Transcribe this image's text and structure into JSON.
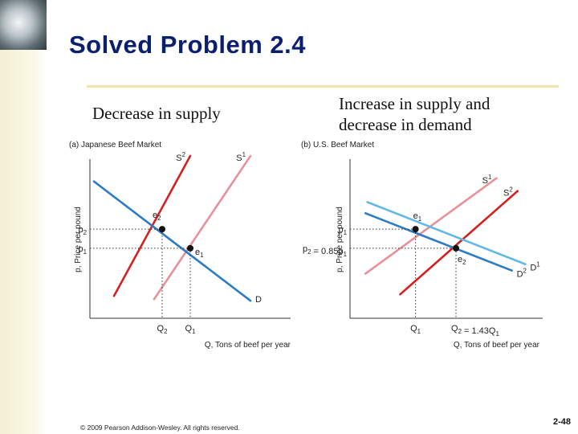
{
  "slide": {
    "title": "Solved Problem 2.4",
    "caption_left": "Decrease in supply",
    "caption_right": "Increase in supply and decrease in demand",
    "footer": "© 2009 Pearson Addison-Wesley. All rights reserved.",
    "page_number": "2-48"
  },
  "colors": {
    "title": "#0a1f6e",
    "supply_original": "#e8909a",
    "supply_new": "#d42020",
    "demand_original": "#5fb8e6",
    "demand_new": "#2b7cc4",
    "equilibrium": "#111111"
  },
  "chart_data": [
    {
      "type": "line",
      "panel_label": "(a) Japanese Beef Market",
      "xlabel": "Q, Tons of beef per year",
      "ylabel": "p, Price per pound",
      "xlim": [
        0,
        10
      ],
      "ylim": [
        0,
        10
      ],
      "x_ticks": [
        {
          "label": "Q2",
          "base": "Q",
          "sub": "2",
          "value": 3.6
        },
        {
          "label": "Q1",
          "base": "Q",
          "sub": "1",
          "value": 5.0
        }
      ],
      "y_ticks": [
        {
          "label": "p2",
          "base": "p",
          "sub": "2",
          "value": 5.6
        },
        {
          "label": "p1",
          "base": "p",
          "sub": "1",
          "value": 4.4
        }
      ],
      "series": [
        {
          "name": "S1",
          "base": "S",
          "sup": "1",
          "role": "supply_original",
          "points": [
            [
              3.2,
              1.2
            ],
            [
              8.0,
              10.2
            ]
          ]
        },
        {
          "name": "S2",
          "base": "S",
          "sup": "2",
          "role": "supply_new",
          "points": [
            [
              1.2,
              1.4
            ],
            [
              5.0,
              10.2
            ]
          ]
        },
        {
          "name": "D",
          "base": "D",
          "sup": "",
          "role": "demand_new",
          "points": [
            [
              0.2,
              8.6
            ],
            [
              8.0,
              1.1
            ]
          ]
        }
      ],
      "equilibria": [
        {
          "label": "e2",
          "base": "e",
          "sub": "2",
          "x": 3.6,
          "y": 5.6
        },
        {
          "label": "e1",
          "base": "e",
          "sub": "1",
          "x": 5.0,
          "y": 4.4
        }
      ]
    },
    {
      "type": "line",
      "panel_label": "(b) U.S. Beef Market",
      "xlabel": "Q, Tons of beef per year",
      "ylabel": "p, Price per pound",
      "xlim": [
        0,
        10
      ],
      "ylim": [
        0,
        10
      ],
      "x_ticks": [
        {
          "label": "Q1",
          "base": "Q",
          "sub": "1",
          "value": 3.4
        },
        {
          "label": "Q2 = 1.43Q1",
          "base": "Q",
          "sub": "2",
          "suffix": " = 1.43",
          "suffix_base": "Q",
          "suffix_sub": "1",
          "value": 5.5
        }
      ],
      "y_ticks": [
        {
          "label": "p1",
          "base": "p",
          "sub": "1",
          "value": 5.6
        },
        {
          "label": "p2 = 0.85p1",
          "base": "p",
          "sub": "2",
          "suffix": " = 0.85",
          "suffix_base": "p",
          "suffix_sub": "1",
          "value": 4.4
        }
      ],
      "series": [
        {
          "name": "S1",
          "base": "S",
          "sup": "1",
          "role": "supply_original",
          "points": [
            [
              0.8,
              2.8
            ],
            [
              7.6,
              8.8
            ]
          ]
        },
        {
          "name": "S2",
          "base": "S",
          "sup": "2",
          "role": "supply_new",
          "points": [
            [
              2.6,
              1.5
            ],
            [
              8.7,
              8.0
            ]
          ]
        },
        {
          "name": "D1",
          "base": "D",
          "sup": "1",
          "role": "demand_original",
          "points": [
            [
              0.9,
              7.3
            ],
            [
              9.1,
              3.4
            ]
          ]
        },
        {
          "name": "D2",
          "base": "D",
          "sup": "2",
          "role": "demand_new",
          "points": [
            [
              0.8,
              6.6
            ],
            [
              8.4,
              3.0
            ]
          ]
        }
      ],
      "equilibria": [
        {
          "label": "e1",
          "base": "e",
          "sub": "1",
          "x": 3.4,
          "y": 5.6
        },
        {
          "label": "e2",
          "base": "e",
          "sub": "2",
          "x": 5.5,
          "y": 4.4
        }
      ]
    }
  ]
}
